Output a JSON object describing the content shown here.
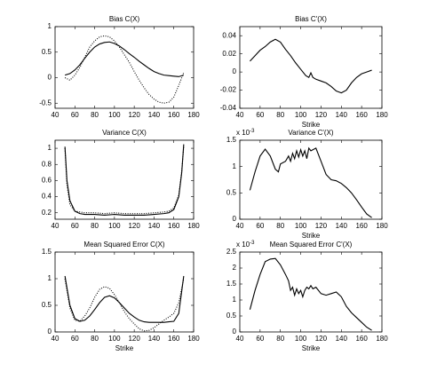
{
  "chart_data": [
    {
      "type": "line",
      "title": "Bias C(X)",
      "x": [
        50,
        55,
        60,
        65,
        70,
        75,
        80,
        85,
        90,
        95,
        100,
        105,
        110,
        115,
        120,
        125,
        130,
        135,
        140,
        145,
        150,
        155,
        160,
        165,
        170
      ],
      "series": [
        {
          "color": "#000000",
          "style": "solid",
          "values": [
            0.05,
            0.08,
            0.15,
            0.25,
            0.38,
            0.5,
            0.6,
            0.66,
            0.69,
            0.7,
            0.67,
            0.62,
            0.55,
            0.47,
            0.4,
            0.32,
            0.25,
            0.18,
            0.12,
            0.08,
            0.05,
            0.04,
            0.03,
            0.02,
            0.05
          ]
        },
        {
          "color": "#000000",
          "style": "dotted",
          "values": [
            0,
            -0.05,
            0.05,
            0.2,
            0.4,
            0.6,
            0.72,
            0.8,
            0.82,
            0.8,
            0.72,
            0.6,
            0.45,
            0.3,
            0.12,
            -0.05,
            -0.2,
            -0.33,
            -0.42,
            -0.48,
            -0.5,
            -0.48,
            -0.38,
            -0.15,
            0.1
          ]
        }
      ],
      "xlim": [
        40,
        180
      ],
      "xticks": [
        40,
        60,
        80,
        100,
        120,
        140,
        160,
        180
      ],
      "ylim": [
        -0.6,
        1
      ],
      "yticks": [
        -0.5,
        0,
        0.5,
        1
      ]
    },
    {
      "type": "line",
      "title": "Bias C'(X)",
      "xlabel": "Strike",
      "x": [
        50,
        55,
        60,
        65,
        70,
        75,
        80,
        85,
        90,
        95,
        100,
        105,
        108,
        110,
        112,
        115,
        120,
        125,
        130,
        135,
        140,
        145,
        150,
        155,
        160,
        165,
        170
      ],
      "series": [
        {
          "color": "#000000",
          "style": "solid",
          "values": [
            0.012,
            0.018,
            0.024,
            0.028,
            0.033,
            0.036,
            0.033,
            0.025,
            0.018,
            0.01,
            0.003,
            -0.004,
            -0.006,
            -0.001,
            -0.006,
            -0.008,
            -0.01,
            -0.012,
            -0.016,
            -0.021,
            -0.023,
            -0.02,
            -0.012,
            -0.006,
            -0.002,
            0,
            0.002
          ]
        }
      ],
      "xlim": [
        40,
        180
      ],
      "xticks": [
        40,
        60,
        80,
        100,
        120,
        140,
        160,
        180
      ],
      "ylim": [
        -0.04,
        0.05
      ],
      "yticks": [
        -0.04,
        -0.02,
        0,
        0.02,
        0.04
      ]
    },
    {
      "type": "line",
      "title": "Variance C(X)",
      "x": [
        50,
        52,
        55,
        60,
        65,
        70,
        80,
        90,
        100,
        110,
        120,
        130,
        140,
        150,
        155,
        160,
        165,
        168,
        170
      ],
      "series": [
        {
          "color": "#000000",
          "style": "solid",
          "values": [
            1.02,
            0.6,
            0.35,
            0.22,
            0.19,
            0.18,
            0.18,
            0.17,
            0.18,
            0.17,
            0.17,
            0.17,
            0.18,
            0.19,
            0.2,
            0.24,
            0.4,
            0.7,
            1.05
          ]
        },
        {
          "color": "#000000",
          "style": "dotted",
          "values": [
            1.0,
            0.55,
            0.3,
            0.22,
            0.21,
            0.2,
            0.2,
            0.19,
            0.2,
            0.19,
            0.19,
            0.19,
            0.2,
            0.21,
            0.22,
            0.26,
            0.42,
            0.72,
            1.02
          ]
        }
      ],
      "xlim": [
        40,
        180
      ],
      "xticks": [
        40,
        60,
        80,
        100,
        120,
        140,
        160,
        180
      ],
      "ylim": [
        0.12,
        1.1
      ],
      "yticks": [
        0.2,
        0.4,
        0.6,
        0.8,
        1
      ]
    },
    {
      "type": "line",
      "title": "Variance C'(X)",
      "xlabel": "Strike",
      "y_multiplier": "x 10",
      "y_multiplier_exponent": "-3",
      "x": [
        50,
        55,
        60,
        65,
        70,
        75,
        78,
        80,
        85,
        88,
        90,
        92,
        94,
        96,
        98,
        100,
        102,
        104,
        106,
        108,
        110,
        115,
        120,
        125,
        130,
        135,
        140,
        145,
        150,
        155,
        160,
        165,
        170
      ],
      "series": [
        {
          "color": "#000000",
          "style": "solid",
          "values": [
            0.55,
            0.9,
            1.2,
            1.33,
            1.2,
            0.95,
            0.9,
            1.05,
            1.1,
            1.2,
            1.1,
            1.25,
            1.15,
            1.3,
            1.18,
            1.32,
            1.2,
            1.3,
            1.15,
            1.35,
            1.3,
            1.35,
            1.1,
            0.85,
            0.75,
            0.73,
            0.68,
            0.6,
            0.5,
            0.37,
            0.23,
            0.1,
            0.03
          ]
        }
      ],
      "xlim": [
        40,
        180
      ],
      "xticks": [
        40,
        60,
        80,
        100,
        120,
        140,
        160,
        180
      ],
      "ylim": [
        0,
        1.5
      ],
      "yticks": [
        0,
        0.5,
        1,
        1.5
      ]
    },
    {
      "type": "line",
      "title": "Mean Squared Error C(X)",
      "xlabel": "Strike",
      "x": [
        50,
        55,
        60,
        65,
        70,
        75,
        80,
        85,
        90,
        95,
        100,
        105,
        110,
        115,
        120,
        125,
        130,
        135,
        140,
        145,
        150,
        155,
        160,
        165,
        170
      ],
      "series": [
        {
          "color": "#000000",
          "style": "solid",
          "values": [
            1.05,
            0.5,
            0.25,
            0.2,
            0.22,
            0.3,
            0.42,
            0.55,
            0.65,
            0.68,
            0.64,
            0.55,
            0.45,
            0.35,
            0.28,
            0.22,
            0.19,
            0.18,
            0.18,
            0.18,
            0.18,
            0.19,
            0.2,
            0.35,
            1.05
          ]
        },
        {
          "color": "#000000",
          "style": "dotted",
          "values": [
            1.0,
            0.45,
            0.22,
            0.2,
            0.3,
            0.45,
            0.65,
            0.8,
            0.85,
            0.82,
            0.7,
            0.55,
            0.38,
            0.25,
            0.15,
            0.06,
            0.02,
            0.03,
            0.08,
            0.15,
            0.22,
            0.28,
            0.35,
            0.55,
            1.0
          ]
        }
      ],
      "xlim": [
        40,
        180
      ],
      "xticks": [
        40,
        60,
        80,
        100,
        120,
        140,
        160,
        180
      ],
      "ylim": [
        0,
        1.5
      ],
      "yticks": [
        0,
        0.5,
        1,
        1.5
      ]
    },
    {
      "type": "line",
      "title": "Mean Squared Error C'(X)",
      "xlabel": "Strike",
      "y_multiplier": "x 10",
      "y_multiplier_exponent": "-3",
      "x": [
        50,
        55,
        60,
        65,
        70,
        75,
        80,
        85,
        88,
        90,
        92,
        94,
        96,
        98,
        100,
        102,
        104,
        106,
        108,
        110,
        112,
        115,
        120,
        125,
        130,
        135,
        140,
        145,
        150,
        155,
        160,
        165,
        170
      ],
      "series": [
        {
          "color": "#000000",
          "style": "solid",
          "values": [
            0.7,
            1.3,
            1.8,
            2.2,
            2.28,
            2.3,
            2.1,
            1.8,
            1.6,
            1.3,
            1.4,
            1.15,
            1.35,
            1.2,
            1.3,
            1.1,
            1.3,
            1.4,
            1.35,
            1.45,
            1.35,
            1.4,
            1.2,
            1.15,
            1.2,
            1.25,
            1.1,
            0.8,
            0.6,
            0.45,
            0.3,
            0.15,
            0.05
          ]
        }
      ],
      "xlim": [
        40,
        180
      ],
      "xticks": [
        40,
        60,
        80,
        100,
        120,
        140,
        160,
        180
      ],
      "ylim": [
        0,
        2.5
      ],
      "yticks": [
        0,
        0.5,
        1,
        1.5,
        2,
        2.5
      ]
    }
  ]
}
